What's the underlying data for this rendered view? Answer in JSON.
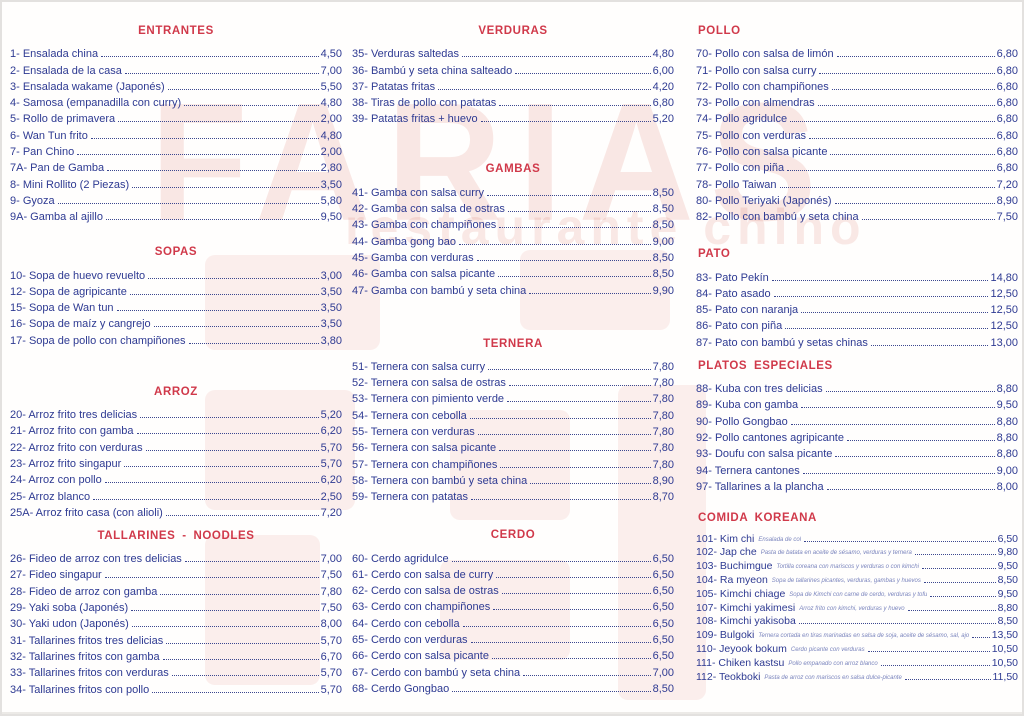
{
  "watermark": {
    "line1": "FARIAS",
    "line2": "restaurante chino"
  },
  "colors": {
    "section_header": "#d0394a",
    "item_text": "#2e3a92",
    "watermark_tint": "#d56456"
  },
  "menu": {
    "columns": [
      {
        "sections": [
          {
            "title": "ENTRANTES",
            "items": [
              {
                "num": "1-",
                "name": "Ensalada china",
                "price": "4,50"
              },
              {
                "num": "2-",
                "name": "Ensalada de la casa",
                "price": "7,00"
              },
              {
                "num": "3-",
                "name": "Ensalada wakame (Japonés)",
                "price": "5,50"
              },
              {
                "num": "4-",
                "name": "Samosa (empanadilla con curry)",
                "price": "4,80"
              },
              {
                "num": "5-",
                "name": "Rollo de primavera",
                "price": "2,00"
              },
              {
                "num": "6-",
                "name": "Wan Tun frito",
                "price": "4,80"
              },
              {
                "num": "7-",
                "name": "Pan Chino",
                "price": "2,00"
              },
              {
                "num": "7A-",
                "name": "Pan de Gamba",
                "price": "2,80"
              },
              {
                "num": "8-",
                "name": "Mini Rollito (2 Piezas)",
                "price": "3,50"
              },
              {
                "num": "9-",
                "name": "Gyoza",
                "price": "5,80"
              },
              {
                "num": "9A-",
                "name": "Gamba al ajillo",
                "price": "9,50"
              }
            ]
          },
          {
            "title": "SOPAS",
            "items": [
              {
                "num": "10-",
                "name": "Sopa de huevo revuelto",
                "price": "3,00"
              },
              {
                "num": "12-",
                "name": "Sopa de agripicante",
                "price": "3,50"
              },
              {
                "num": "15-",
                "name": "Sopa de Wan tun",
                "price": "3,50"
              },
              {
                "num": "16-",
                "name": "Sopa de maíz y cangrejo",
                "price": "3,50"
              },
              {
                "num": "17-",
                "name": "Sopa de pollo con champiñones",
                "price": "3,80"
              }
            ]
          },
          {
            "title": "ARROZ",
            "items": [
              {
                "num": "20-",
                "name": "Arroz frito tres delicias",
                "price": "5,20"
              },
              {
                "num": "21-",
                "name": "Arroz frito con gamba",
                "price": "6,20"
              },
              {
                "num": "22-",
                "name": "Arroz frito con verduras",
                "price": "5,70"
              },
              {
                "num": "23-",
                "name": "Arroz frito singapur",
                "price": "5,70"
              },
              {
                "num": "24-",
                "name": "Arroz con pollo",
                "price": "6,20"
              },
              {
                "num": "25-",
                "name": "Arroz blanco",
                "price": "2,50"
              },
              {
                "num": "25A-",
                "name": "Arroz frito casa (con alioli)",
                "price": "7,20"
              }
            ]
          },
          {
            "title": "TALLARINES - NOODLES",
            "items": [
              {
                "num": "26-",
                "name": "Fideo de arroz con tres delicias",
                "price": "7,00"
              },
              {
                "num": "27-",
                "name": "Fideo singapur",
                "price": "7,50"
              },
              {
                "num": "28-",
                "name": "Fideo de arroz con gamba",
                "price": "7,80"
              },
              {
                "num": "29-",
                "name": "Yaki soba (Japonés)",
                "price": "7,50"
              },
              {
                "num": "30-",
                "name": "Yaki udon (Japonés)",
                "price": "8,00"
              },
              {
                "num": "31-",
                "name": "Tallarines fritos tres delicias",
                "price": "5,70"
              },
              {
                "num": "32-",
                "name": "Tallarines fritos con gamba",
                "price": "6,70"
              },
              {
                "num": "33-",
                "name": "Tallarines fritos con verduras",
                "price": "5,70"
              },
              {
                "num": "34-",
                "name": "Tallarines fritos con pollo",
                "price": "5,70"
              }
            ]
          }
        ]
      },
      {
        "sections": [
          {
            "title": "VERDURAS",
            "items": [
              {
                "num": "35-",
                "name": "Verduras saltedas",
                "price": "4,80"
              },
              {
                "num": "36-",
                "name": "Bambú y seta china salteado",
                "price": "6,00"
              },
              {
                "num": "37-",
                "name": "Patatas fritas",
                "price": "4,20"
              },
              {
                "num": "38-",
                "name": "Tiras de pollo con patatas",
                "price": "6,80"
              },
              {
                "num": "39-",
                "name": "Patatas fritas + huevo",
                "price": "5,20"
              }
            ]
          },
          {
            "title": "GAMBAS",
            "items": [
              {
                "num": "41-",
                "name": "Gamba con salsa curry",
                "price": "8,50"
              },
              {
                "num": "42-",
                "name": "Gamba con salsa de ostras",
                "price": "8,50"
              },
              {
                "num": "43-",
                "name": "Gamba con champiñones",
                "price": "8,50"
              },
              {
                "num": "44-",
                "name": "Gamba gong bao",
                "price": "9,00"
              },
              {
                "num": "45-",
                "name": "Gamba con verduras",
                "price": "8,50"
              },
              {
                "num": "46-",
                "name": "Gamba con salsa picante",
                "price": "8,50"
              },
              {
                "num": "47-",
                "name": "Gamba con bambú y seta china",
                "price": "9,90"
              }
            ]
          },
          {
            "title": "TERNERA",
            "items": [
              {
                "num": "51-",
                "name": "Ternera con salsa curry",
                "price": "7,80"
              },
              {
                "num": "52-",
                "name": "Ternera con salsa de ostras",
                "price": "7,80"
              },
              {
                "num": "53-",
                "name": "Ternera con pimiento verde",
                "price": "7,80"
              },
              {
                "num": "54-",
                "name": "Ternera con cebolla",
                "price": "7,80"
              },
              {
                "num": "55-",
                "name": "Ternera con verduras",
                "price": "7,80"
              },
              {
                "num": "56-",
                "name": "Ternera con salsa picante",
                "price": "7,80"
              },
              {
                "num": "57-",
                "name": "Ternera con champiñones",
                "price": "7,80"
              },
              {
                "num": "58-",
                "name": "Ternera con bambú y seta china",
                "price": "8,90"
              },
              {
                "num": "59-",
                "name": "Ternera con patatas",
                "price": "8,70"
              }
            ]
          },
          {
            "title": "CERDO",
            "items": [
              {
                "num": "60-",
                "name": "Cerdo agridulce",
                "price": "6,50"
              },
              {
                "num": "61-",
                "name": "Cerdo con salsa de curry",
                "price": "6,50"
              },
              {
                "num": "62-",
                "name": "Cerdo con salsa de ostras",
                "price": "6,50"
              },
              {
                "num": "63-",
                "name": "Cerdo con champiñones",
                "price": "6,50"
              },
              {
                "num": "64-",
                "name": "Cerdo con cebolla",
                "price": "6,50"
              },
              {
                "num": "65-",
                "name": "Cerdo con verduras",
                "price": "6,50"
              },
              {
                "num": "66-",
                "name": "Cerdo con salsa picante",
                "price": "6,50"
              },
              {
                "num": "67-",
                "name": "Cerdo con bambú y seta china",
                "price": "7,00"
              },
              {
                "num": "68-",
                "name": "Cerdo Gongbao",
                "price": "8,50"
              }
            ]
          }
        ]
      },
      {
        "sections": [
          {
            "title": "POLLO",
            "items": [
              {
                "num": "70-",
                "name": "Pollo con salsa de limón",
                "price": "6,80"
              },
              {
                "num": "71-",
                "name": "Pollo con salsa curry",
                "price": "6,80"
              },
              {
                "num": "72-",
                "name": "Pollo con champiñones",
                "price": "6,80"
              },
              {
                "num": "73-",
                "name": "Pollo con almendras",
                "price": "6,80"
              },
              {
                "num": "74-",
                "name": "Pollo agridulce",
                "price": "6,80"
              },
              {
                "num": "75-",
                "name": "Pollo con verduras",
                "price": "6,80"
              },
              {
                "num": "76-",
                "name": "Pollo con salsa picante",
                "price": "6,80"
              },
              {
                "num": "77-",
                "name": "Pollo con piña",
                "price": "6,80"
              },
              {
                "num": "78-",
                "name": "Pollo Taiwan",
                "price": "7,20"
              },
              {
                "num": "80-",
                "name": "Pollo Teriyaki (Japonés)",
                "price": "8,90"
              },
              {
                "num": "82-",
                "name": "Pollo con bambú y seta china",
                "price": "7,50"
              }
            ]
          },
          {
            "title": "PATO",
            "items": [
              {
                "num": "83-",
                "name": "Pato Pekín",
                "price": "14,80"
              },
              {
                "num": "84-",
                "name": "Pato asado",
                "price": "12,50"
              },
              {
                "num": "85-",
                "name": "Pato con naranja",
                "price": "12,50"
              },
              {
                "num": "86-",
                "name": "Pato con piña",
                "price": "12,50"
              },
              {
                "num": "87-",
                "name": "Pato con bambú y setas chinas",
                "price": "13,00"
              }
            ]
          },
          {
            "title": "PLATOS ESPECIALES",
            "items": [
              {
                "num": "88-",
                "name": "Kuba con tres delicias",
                "price": "8,80"
              },
              {
                "num": "89-",
                "name": "Kuba con gamba",
                "price": "9,50"
              },
              {
                "num": "90-",
                "name": "Pollo Gongbao",
                "price": "8,80"
              },
              {
                "num": "92-",
                "name": "Pollo cantones agripicante",
                "price": "8,80"
              },
              {
                "num": "93-",
                "name": "Doufu con salsa picante",
                "price": "8,80"
              },
              {
                "num": "94-",
                "name": "Ternera cantones",
                "price": "9,00"
              },
              {
                "num": "97-",
                "name": "Tallarines a la plancha",
                "price": "8,00"
              }
            ]
          },
          {
            "title": "COMIDA KOREANA",
            "items": [
              {
                "num": "101-",
                "name": "Kim chi",
                "desc": "Ensalada de col",
                "price": "6,50"
              },
              {
                "num": "102-",
                "name": "Jap che",
                "desc": "Pasta de batata en aceite de sésamo, verduras y ternera",
                "price": "9,80"
              },
              {
                "num": "103-",
                "name": "Buchimgue",
                "desc": "Tortilla coreana con mariscos y verduras o con kimchi",
                "price": "9,50"
              },
              {
                "num": "104-",
                "name": "Ra myeon",
                "desc": "Sopa de tallarines picantes, verduras, gambas y huevos",
                "price": "8,50"
              },
              {
                "num": "105-",
                "name": "Kimchi chiage",
                "desc": "Sopa de Kimchi con carne de cerdo, verduras y tofu",
                "price": "9,50"
              },
              {
                "num": "107-",
                "name": "Kimchi yakimesi",
                "desc": "Arroz frito con kimchi, verduras y huevo",
                "price": "8,80"
              },
              {
                "num": "108-",
                "name": "Kimchi yakisoba",
                "price": "8,50"
              },
              {
                "num": "109-",
                "name": "Bulgoki",
                "desc": "Ternera cortada en tiras marinadas en salsa de soja, aceite de sésamo, sal, ajo",
                "price": "13,50"
              },
              {
                "num": "110-",
                "name": "Jeyook bokum",
                "desc": "Cerdo picante con verduras",
                "price": "10,50"
              },
              {
                "num": "111-",
                "name": "Chiken kastsu",
                "desc": "Pollo empanado con arroz blanco",
                "price": "10,50"
              },
              {
                "num": "112-",
                "name": "Teokboki",
                "desc": "Pasta de arroz con mariscos en salsa dulce-picante",
                "price": "11,50"
              }
            ]
          }
        ]
      }
    ]
  }
}
